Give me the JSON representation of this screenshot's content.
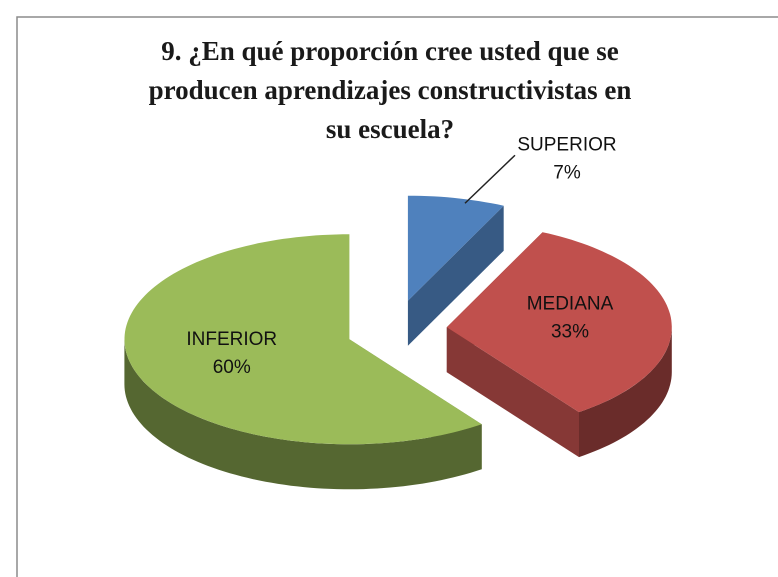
{
  "chart_data": {
    "type": "pie3d",
    "title": "9. ¿En qué proporción cree usted que se producen aprendizajes constructivistas en su escuela?",
    "categories": [
      "SUPERIOR",
      "MEDIANA",
      "INFERIOR"
    ],
    "values": [
      7,
      33,
      60
    ],
    "value_labels": [
      "7%",
      "33%",
      "60%"
    ],
    "colors": [
      "#4f81bd",
      "#c0504d",
      "#9bbb59"
    ]
  }
}
